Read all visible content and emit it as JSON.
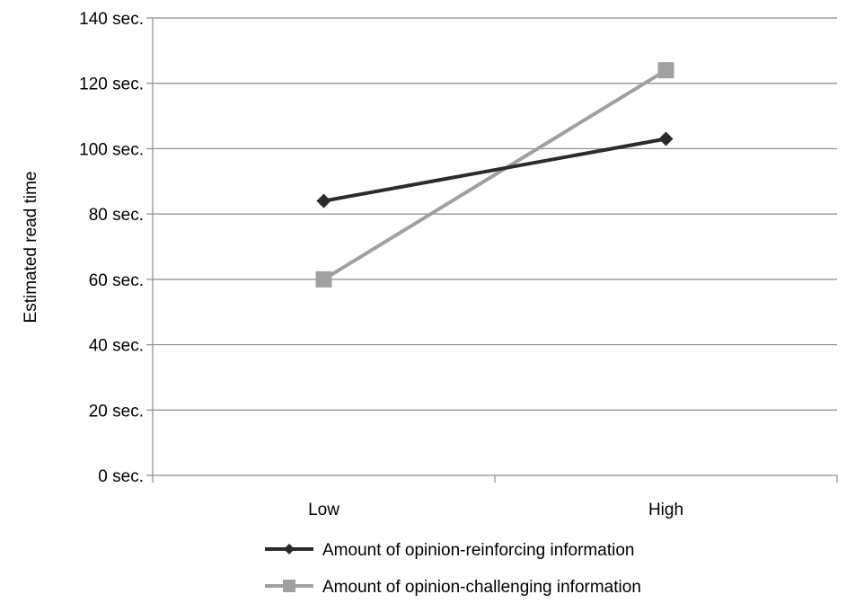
{
  "chart_data": {
    "type": "line",
    "title": "",
    "xlabel": "",
    "ylabel": "Estimated read time",
    "categories": [
      "Low",
      "High"
    ],
    "ylim": [
      0,
      140
    ],
    "yticks": [
      0,
      20,
      40,
      60,
      80,
      100,
      120,
      140
    ],
    "ytick_labels": [
      "0 sec.",
      "20 sec.",
      "40 sec.",
      "60 sec.",
      "80 sec.",
      "100 sec.",
      "120 sec.",
      "140 sec."
    ],
    "grid": true,
    "legend_position": "bottom",
    "series": [
      {
        "name": "Amount of opinion-reinforcing information",
        "values": [
          84,
          103
        ],
        "color": "#2b2b2b",
        "marker": "diamond"
      },
      {
        "name": "Amount of opinion-challenging information",
        "values": [
          60,
          124
        ],
        "color": "#a0a0a0",
        "marker": "square"
      }
    ]
  }
}
